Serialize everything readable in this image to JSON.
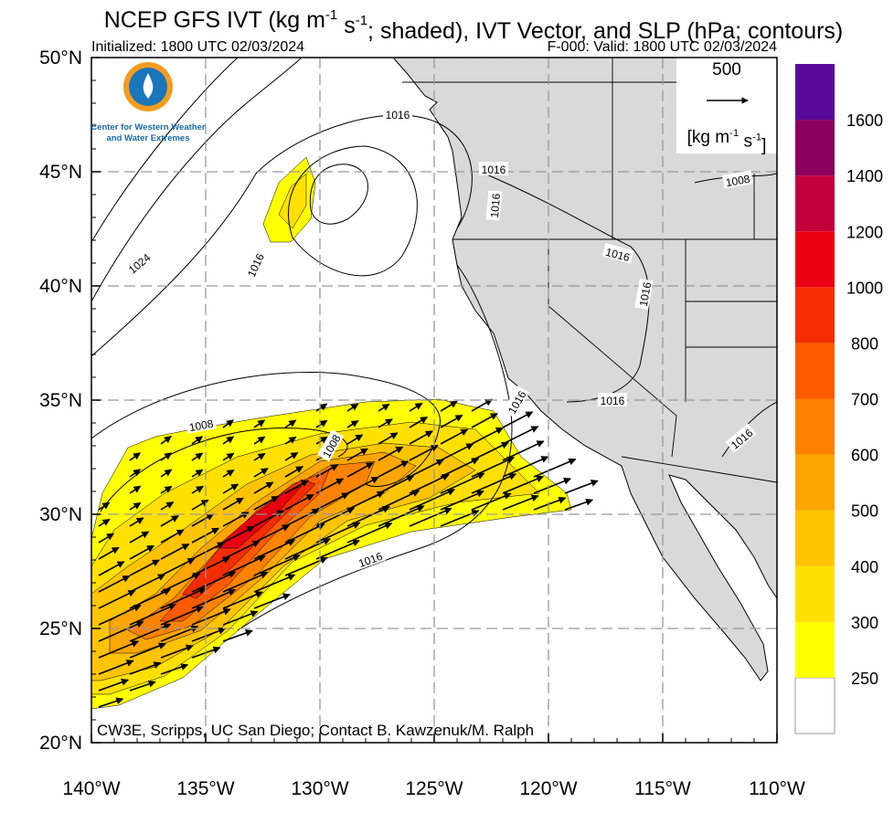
{
  "header": {
    "title_parts": [
      "NCEP GFS IVT (kg m",
      "-1",
      " s",
      "-1",
      "; shaded), IVT Vector, and SLP (hPa; contours)"
    ],
    "initialized": "Initialized: 1800 UTC 02/03/2024",
    "valid": "F-000: Valid: 1800 UTC 02/03/2024"
  },
  "logo": {
    "line1": "Center for Western Weather",
    "line2": "and Water Extremes"
  },
  "vector_key": {
    "magnitude": "500",
    "units_parts": [
      "[kg m",
      "-1",
      " s",
      "-1",
      "]"
    ]
  },
  "map": {
    "xlim": [
      -140,
      -110
    ],
    "ylim": [
      20,
      50
    ],
    "xticks": [
      {
        "value": -140,
        "label": "140°W"
      },
      {
        "value": -135,
        "label": "135°W"
      },
      {
        "value": -130,
        "label": "130°W"
      },
      {
        "value": -125,
        "label": "125°W"
      },
      {
        "value": -120,
        "label": "120°W"
      },
      {
        "value": -115,
        "label": "115°W"
      },
      {
        "value": -110,
        "label": "110°W"
      }
    ],
    "yticks": [
      {
        "value": 20,
        "label": "20°N"
      },
      {
        "value": 25,
        "label": "25°N"
      },
      {
        "value": 30,
        "label": "30°N"
      },
      {
        "value": 35,
        "label": "35°N"
      },
      {
        "value": 40,
        "label": "40°N"
      },
      {
        "value": 45,
        "label": "45°N"
      },
      {
        "value": 50,
        "label": "50°N"
      }
    ],
    "contour_labels": [
      "1024",
      "1016",
      "1016",
      "1016",
      "1016",
      "1008",
      "1016",
      "1016",
      "1016",
      "1016",
      "1016",
      "1008",
      "1008",
      "1016"
    ]
  },
  "colorbar": {
    "levels": [
      250,
      300,
      400,
      500,
      600,
      700,
      800,
      1000,
      1200,
      1400,
      1600
    ],
    "colors": [
      "#ffffff",
      "#ffff00",
      "#ffe000",
      "#ffc400",
      "#ffa600",
      "#ff8200",
      "#ff5a00",
      "#f52c00",
      "#e80012",
      "#c4003c",
      "#8a005c",
      "#5a0a98"
    ]
  },
  "credit": "CW3E, Scripps, UC San Diego; Contact B. Kawzenuk/M. Ralph"
}
